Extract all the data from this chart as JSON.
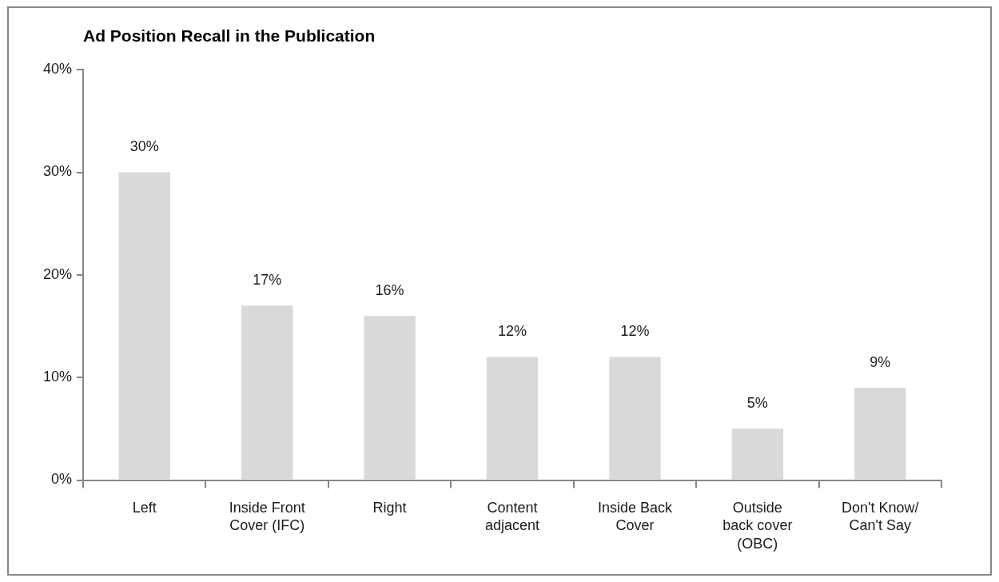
{
  "chart_data": {
    "type": "bar",
    "title": "Ad Position Recall in the Publication",
    "categories": [
      "Left",
      "Inside Front Cover (IFC)",
      "Right",
      "Content adjacent",
      "Inside Back Cover",
      "Outside back cover (OBC)",
      "Don't Know/ Can't Say"
    ],
    "values": [
      30,
      17,
      16,
      12,
      12,
      5,
      9
    ],
    "color": "#d9d9d9",
    "value_labels": [
      "30%",
      "17%",
      "16%",
      "12%",
      "12%",
      "5%",
      "9%"
    ],
    "ylim": [
      0,
      40
    ],
    "yticks": [
      {
        "value": 0,
        "label": "0%"
      },
      {
        "value": 10,
        "label": "10%"
      },
      {
        "value": 20,
        "label": "20%"
      },
      {
        "value": 30,
        "label": "30%"
      },
      {
        "value": 40,
        "label": "40%"
      }
    ]
  }
}
